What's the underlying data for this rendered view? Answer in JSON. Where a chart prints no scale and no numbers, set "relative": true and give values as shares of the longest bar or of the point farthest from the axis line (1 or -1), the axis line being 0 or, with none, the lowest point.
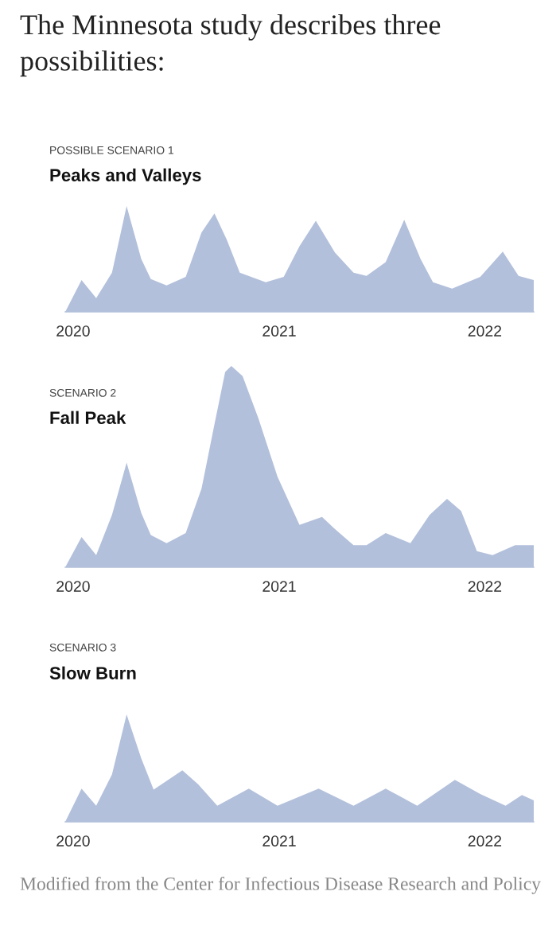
{
  "chart_data": [
    {
      "type": "area",
      "relative": true,
      "title": "POSSIBLE SCENARIO 1",
      "subtitle": "Peaks and Valleys",
      "color": "#b3c0db",
      "x": [
        "2019-12-18",
        "2020-01-16",
        "2020-02-11",
        "2020-03-10",
        "2020-04-05",
        "2020-05-01",
        "2020-05-18",
        "2020-06-15",
        "2020-07-19",
        "2020-08-16",
        "2020-09-08",
        "2020-09-30",
        "2020-10-23",
        "2020-12-08",
        "2021-01-09",
        "2021-02-06",
        "2021-03-07",
        "2021-04-10",
        "2021-05-13",
        "2021-06-05",
        "2021-07-09",
        "2021-08-11",
        "2021-09-09",
        "2021-10-01",
        "2021-11-04",
        "2021-12-24",
        "2022-02-02",
        "2022-03-02",
        "2022-03-29"
      ],
      "values": [
        0,
        0.3,
        0.13,
        0.37,
        1,
        0.5,
        0.31,
        0.25,
        0.33,
        0.75,
        0.93,
        0.68,
        0.37,
        0.28,
        0.33,
        0.62,
        0.86,
        0.56,
        0.37,
        0.34,
        0.47,
        0.87,
        0.5,
        0.28,
        0.22,
        0.33,
        0.57,
        0.34,
        0.3
      ],
      "xlim": [
        "2019-12-18",
        "2022-03-29"
      ],
      "xticks": [
        {
          "value": "2020-01-01",
          "label": "2020"
        },
        {
          "value": "2021-01-01",
          "label": "2021"
        },
        {
          "value": "2022-01-01",
          "label": "2022"
        }
      ],
      "tick_labels": "x",
      "grid": false,
      "legend": false
    },
    {
      "type": "area",
      "relative": true,
      "title": "SCENARIO 2",
      "subtitle": "Fall Peak",
      "color": "#b3c0db",
      "x": [
        "2019-12-18",
        "2020-01-16",
        "2020-02-11",
        "2020-03-10",
        "2020-04-05",
        "2020-05-01",
        "2020-05-18",
        "2020-06-15",
        "2020-07-19",
        "2020-08-16",
        "2020-09-08",
        "2020-09-27",
        "2020-10-08",
        "2020-10-28",
        "2020-11-25",
        "2020-12-29",
        "2021-02-06",
        "2021-03-18",
        "2021-04-10",
        "2021-05-13",
        "2021-06-05",
        "2021-07-09",
        "2021-08-22",
        "2021-09-25",
        "2021-10-26",
        "2021-11-20",
        "2021-12-18",
        "2022-01-15",
        "2022-02-24",
        "2022-03-29"
      ],
      "values": [
        0,
        0.15,
        0.06,
        0.26,
        0.52,
        0.27,
        0.16,
        0.12,
        0.17,
        0.39,
        0.71,
        0.97,
        1,
        0.95,
        0.74,
        0.45,
        0.21,
        0.25,
        0.19,
        0.11,
        0.11,
        0.17,
        0.12,
        0.26,
        0.34,
        0.28,
        0.08,
        0.06,
        0.11,
        0.11
      ],
      "xlim": [
        "2019-12-18",
        "2022-03-29"
      ],
      "xticks": [
        {
          "value": "2020-01-01",
          "label": "2020"
        },
        {
          "value": "2021-01-01",
          "label": "2021"
        },
        {
          "value": "2022-01-01",
          "label": "2022"
        }
      ],
      "tick_labels": "x",
      "grid": false,
      "legend": false
    },
    {
      "type": "area",
      "relative": true,
      "title": "SCENARIO 3",
      "subtitle": "Slow Burn",
      "color": "#b3c0db",
      "x": [
        "2019-12-18",
        "2020-01-16",
        "2020-02-11",
        "2020-03-10",
        "2020-04-05",
        "2020-05-01",
        "2020-05-23",
        "2020-07-13",
        "2020-08-10",
        "2020-09-13",
        "2020-11-08",
        "2020-12-29",
        "2021-03-12",
        "2021-05-13",
        "2021-07-09",
        "2021-09-03",
        "2021-11-09",
        "2021-12-24",
        "2022-02-07",
        "2022-03-08",
        "2022-03-29"
      ],
      "values": [
        0,
        0.31,
        0.15,
        0.44,
        1,
        0.59,
        0.3,
        0.48,
        0.35,
        0.15,
        0.31,
        0.15,
        0.31,
        0.15,
        0.31,
        0.15,
        0.39,
        0.26,
        0.15,
        0.25,
        0.2
      ],
      "xlim": [
        "2019-12-18",
        "2022-03-29"
      ],
      "xticks": [
        {
          "value": "2020-01-01",
          "label": "2020"
        },
        {
          "value": "2021-01-01",
          "label": "2021"
        },
        {
          "value": "2022-01-01",
          "label": "2022"
        }
      ],
      "tick_labels": "x",
      "grid": false,
      "legend": false,
      "annotations": [
        "The Minnesota study describes three possibilities:",
        "Modified from the Center for Infectious Disease Research and Policy"
      ]
    }
  ]
}
